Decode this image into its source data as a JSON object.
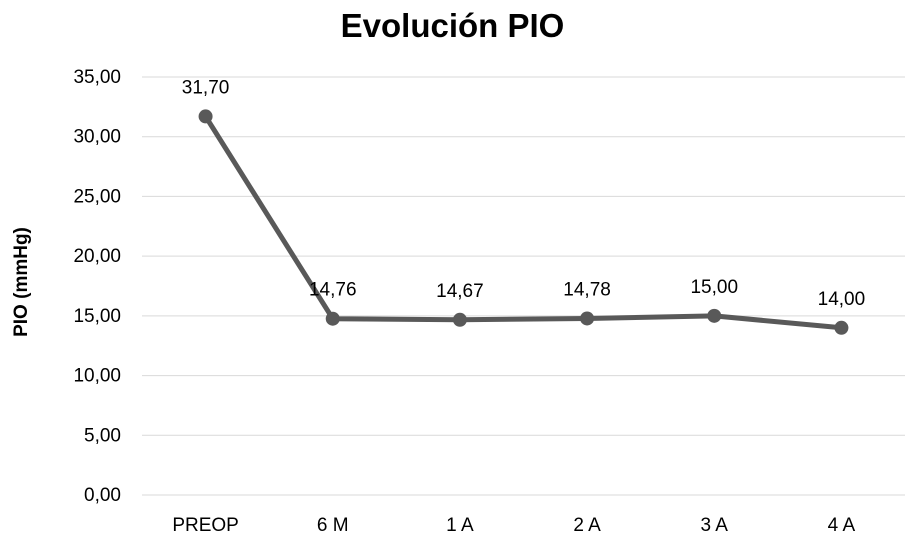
{
  "chart_data": {
    "type": "line",
    "title": "Evolución PIO",
    "ylabel": "PIO (mmHg)",
    "xlabel": "",
    "categories": [
      "PREOP",
      "6 M",
      "1 A",
      "2 A",
      "3 A",
      "4 A"
    ],
    "series": [
      {
        "values": [
          31.7,
          14.76,
          14.67,
          14.78,
          15.0,
          14.0
        ],
        "data_labels": [
          "31,70",
          "14,76",
          "14,67",
          "14,78",
          "15,00",
          "14,00"
        ]
      }
    ],
    "ylim": [
      0,
      35
    ],
    "y_ticks": [
      0,
      5,
      10,
      15,
      20,
      25,
      30,
      35
    ],
    "y_tick_labels": [
      "0,00",
      "5,00",
      "10,00",
      "15,00",
      "20,00",
      "25,00",
      "30,00",
      "35,00"
    ],
    "grid": true,
    "legend": "none",
    "colors": {
      "line": "#595959",
      "grid": "#d9d9d9",
      "text": "#000000"
    }
  }
}
